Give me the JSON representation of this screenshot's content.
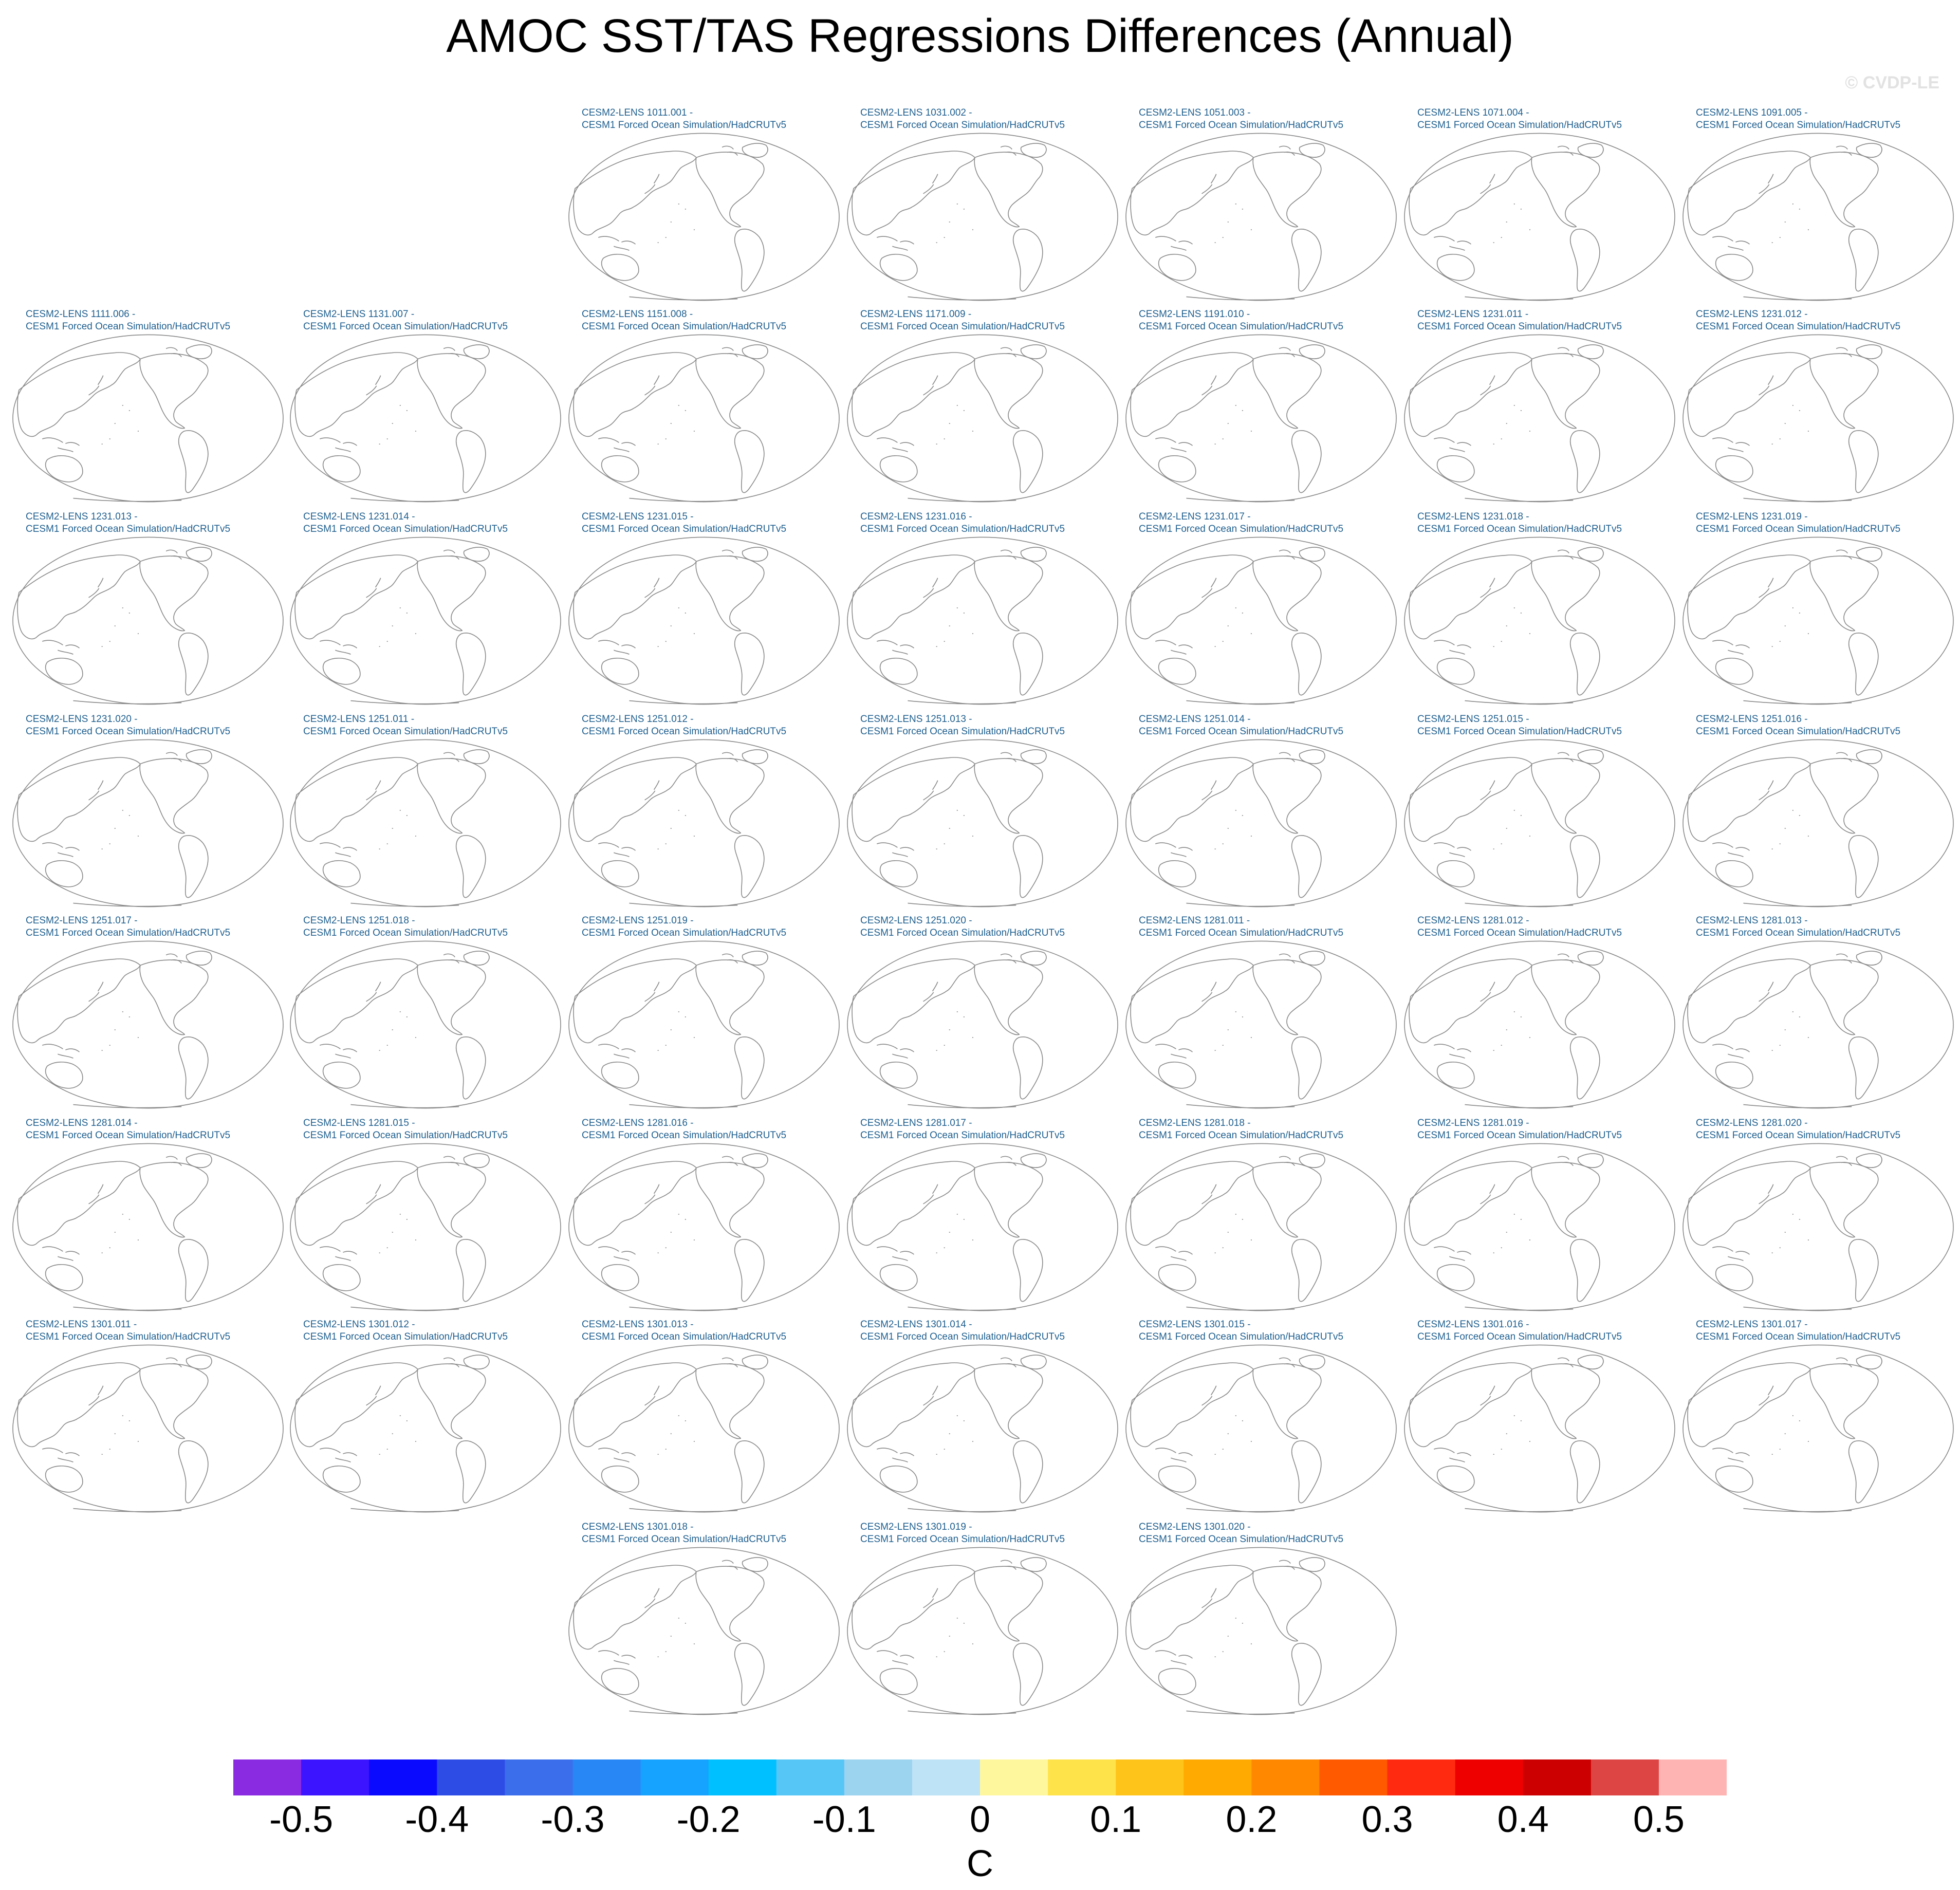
{
  "title": "AMOC SST/TAS Regressions Differences (Annual)",
  "watermark": "© CVDP-LE",
  "units": "C",
  "colors": {
    "panel_title": "#1f5f8f",
    "coastline": "#8a8a8a"
  },
  "panel_line2": "CESM1 Forced Ocean Simulation/HadCRUTv5",
  "panels": [
    {
      "member": "CESM2-LENS 1011.001 -"
    },
    {
      "member": "CESM2-LENS 1031.002 -"
    },
    {
      "member": "CESM2-LENS 1051.003 -"
    },
    {
      "member": "CESM2-LENS 1071.004 -"
    },
    {
      "member": "CESM2-LENS 1091.005 -"
    },
    {
      "member": "CESM2-LENS 1111.006 -"
    },
    {
      "member": "CESM2-LENS 1131.007 -"
    },
    {
      "member": "CESM2-LENS 1151.008 -"
    },
    {
      "member": "CESM2-LENS 1171.009 -"
    },
    {
      "member": "CESM2-LENS 1191.010 -"
    },
    {
      "member": "CESM2-LENS 1231.011 -"
    },
    {
      "member": "CESM2-LENS 1231.012 -"
    },
    {
      "member": "CESM2-LENS 1231.013 -"
    },
    {
      "member": "CESM2-LENS 1231.014 -"
    },
    {
      "member": "CESM2-LENS 1231.015 -"
    },
    {
      "member": "CESM2-LENS 1231.016 -"
    },
    {
      "member": "CESM2-LENS 1231.017 -"
    },
    {
      "member": "CESM2-LENS 1231.018 -"
    },
    {
      "member": "CESM2-LENS 1231.019 -"
    },
    {
      "member": "CESM2-LENS 1231.020 -"
    },
    {
      "member": "CESM2-LENS 1251.011 -"
    },
    {
      "member": "CESM2-LENS 1251.012 -"
    },
    {
      "member": "CESM2-LENS 1251.013 -"
    },
    {
      "member": "CESM2-LENS 1251.014 -"
    },
    {
      "member": "CESM2-LENS 1251.015 -"
    },
    {
      "member": "CESM2-LENS 1251.016 -"
    },
    {
      "member": "CESM2-LENS 1251.017 -"
    },
    {
      "member": "CESM2-LENS 1251.018 -"
    },
    {
      "member": "CESM2-LENS 1251.019 -"
    },
    {
      "member": "CESM2-LENS 1251.020 -"
    },
    {
      "member": "CESM2-LENS 1281.011 -"
    },
    {
      "member": "CESM2-LENS 1281.012 -"
    },
    {
      "member": "CESM2-LENS 1281.013 -"
    },
    {
      "member": "CESM2-LENS 1281.014 -"
    },
    {
      "member": "CESM2-LENS 1281.015 -"
    },
    {
      "member": "CESM2-LENS 1281.016 -"
    },
    {
      "member": "CESM2-LENS 1281.017 -"
    },
    {
      "member": "CESM2-LENS 1281.018 -"
    },
    {
      "member": "CESM2-LENS 1281.019 -"
    },
    {
      "member": "CESM2-LENS 1281.020 -"
    },
    {
      "member": "CESM2-LENS 1301.011 -"
    },
    {
      "member": "CESM2-LENS 1301.012 -"
    },
    {
      "member": "CESM2-LENS 1301.013 -"
    },
    {
      "member": "CESM2-LENS 1301.014 -"
    },
    {
      "member": "CESM2-LENS 1301.015 -"
    },
    {
      "member": "CESM2-LENS 1301.016 -"
    },
    {
      "member": "CESM2-LENS 1301.017 -"
    },
    {
      "member": "CESM2-LENS 1301.018 -"
    },
    {
      "member": "CESM2-LENS 1301.019 -"
    },
    {
      "member": "CESM2-LENS 1301.020 -"
    }
  ],
  "colorbar": {
    "colors": [
      "#8a2be2",
      "#3c14ff",
      "#0a0aff",
      "#2d4ce6",
      "#3a6eea",
      "#2986f5",
      "#16a2ff",
      "#00c0ff",
      "#55c6f6",
      "#9cd3ef",
      "#bfe3f6",
      "#fff79e",
      "#ffe34a",
      "#ffc41a",
      "#ffaa00",
      "#ff8800",
      "#ff5a00",
      "#ff2a10",
      "#ee0000",
      "#cc0000",
      "#dd4444",
      "#ffb4b4"
    ],
    "tick_labels": [
      "-0.5",
      "-0.4",
      "-0.3",
      "-0.2",
      "-0.1",
      "0",
      "0.1",
      "0.2",
      "0.3",
      "0.4",
      "0.5"
    ]
  }
}
